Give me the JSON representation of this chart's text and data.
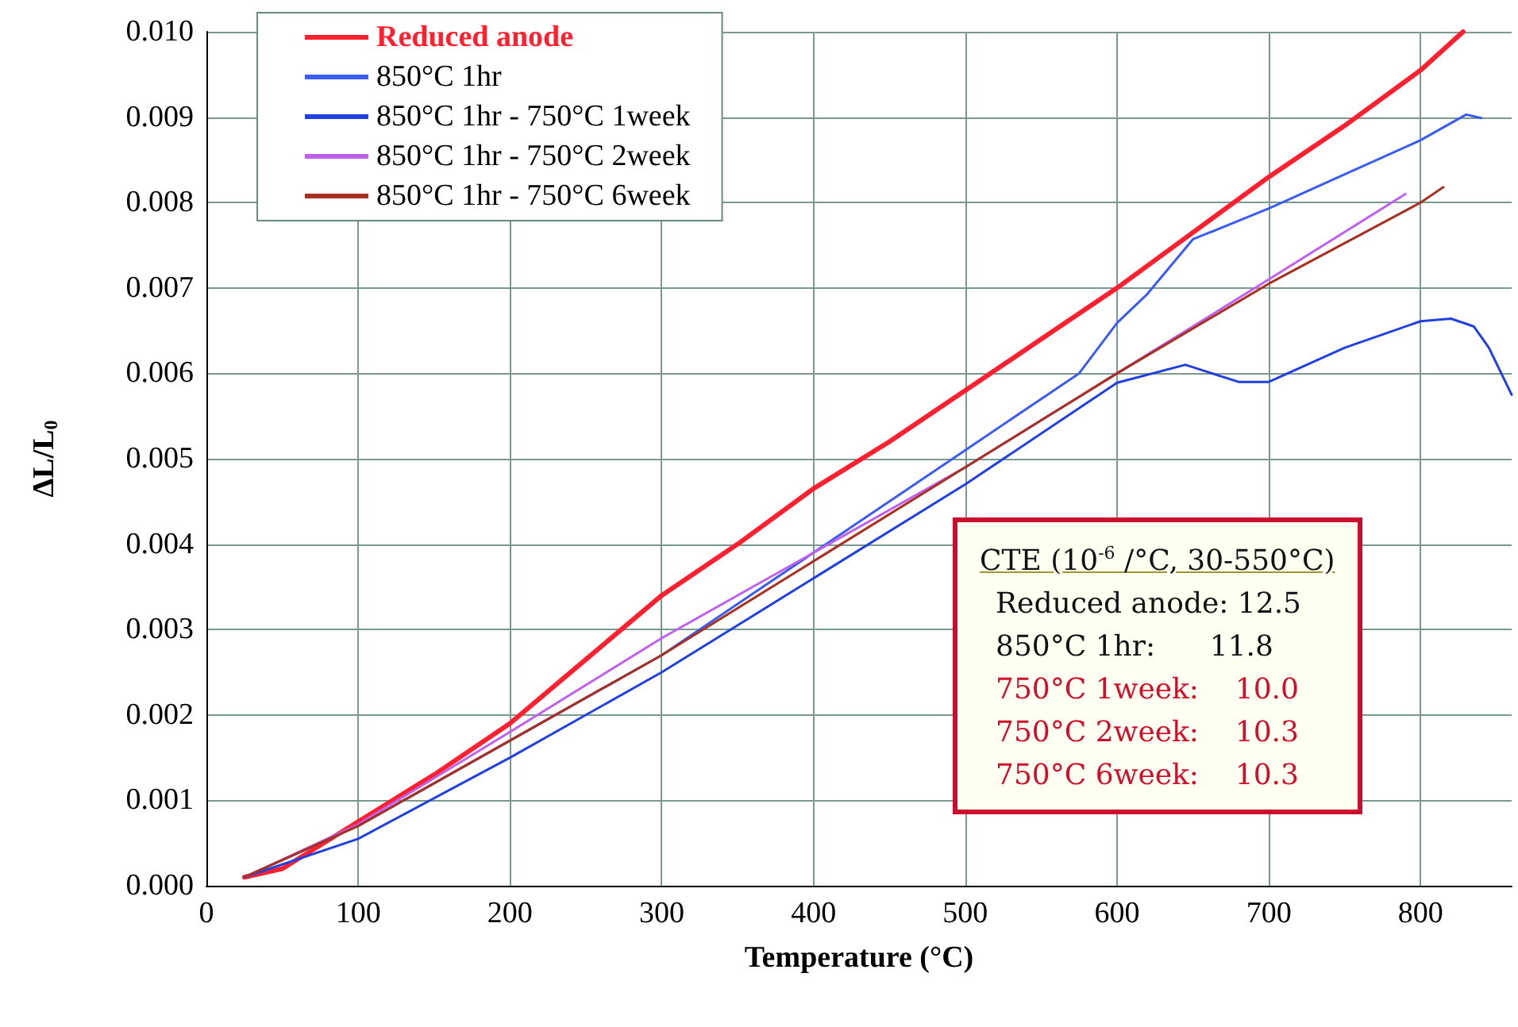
{
  "chart_data": {
    "type": "line",
    "xlabel": "Temperature (°C)",
    "ylabel": "ΔL/L$_{0}$",
    "xlim": [
      0,
      860
    ],
    "xticks": [
      0,
      100,
      200,
      300,
      400,
      500,
      600,
      700,
      800
    ],
    "ylim": [
      0,
      0.01
    ],
    "yticks": [
      {
        "value": 0,
        "label": "0.000"
      },
      {
        "value": 0.001,
        "label": "0.001"
      },
      {
        "value": 0.002,
        "label": "0.002"
      },
      {
        "value": 0.003,
        "label": "0.003"
      },
      {
        "value": 0.004,
        "label": "0.004"
      },
      {
        "value": 0.005,
        "label": "0.005"
      },
      {
        "value": 0.006,
        "label": "0.006"
      },
      {
        "value": 0.007,
        "label": "0.007"
      },
      {
        "value": 0.008,
        "label": "0.008"
      },
      {
        "value": 0.009,
        "label": "0.009"
      },
      {
        "value": 0.01,
        "label": "0.010"
      }
    ],
    "grid": true,
    "legend": "top left",
    "marker": "none",
    "line_style": "solid",
    "annotations": [
      "CTE (10$^{-6}$ /°C, 30-550°C)",
      "Reduced anode: 12.5",
      "850°C 1hr:      11.8",
      "750°C 1week:    10.0",
      "750°C 2week:    10.3",
      "750°C 6week:    10.3"
    ],
    "series": [
      {
        "name": "Reduced anode",
        "color": "#ff2030",
        "x": [
          25,
          50,
          100,
          150,
          200,
          250,
          300,
          350,
          400,
          450,
          500,
          550,
          600,
          650,
          700,
          750,
          800,
          828
        ],
        "values": [
          0.0001,
          0.0002,
          0.00075,
          0.0013,
          0.0019,
          0.00265,
          0.0034,
          0.004,
          0.00465,
          0.0052,
          0.0058,
          0.0064,
          0.007,
          0.00765,
          0.0083,
          0.0089,
          0.00955,
          0.01
        ]
      },
      {
        "name": "850°C 1hr",
        "color": "#3a5cf0",
        "x": [
          25,
          100,
          200,
          300,
          400,
          500,
          550,
          575,
          600,
          620,
          650,
          700,
          750,
          800,
          830,
          840
        ],
        "values": [
          0.0001,
          0.0007,
          0.0017,
          0.0027,
          0.0039,
          0.0051,
          0.0057,
          0.006,
          0.00659,
          0.00693,
          0.00757,
          0.00793,
          0.00833,
          0.00873,
          0.00903,
          0.00899
        ]
      },
      {
        "name": "850°C 1hr - 750°C 1week",
        "color": "#2040e0",
        "x": [
          25,
          100,
          200,
          300,
          400,
          500,
          600,
          645,
          680,
          700,
          750,
          800,
          820,
          835,
          845,
          860
        ],
        "values": [
          0.0001,
          0.00055,
          0.0015,
          0.0025,
          0.0036,
          0.0047,
          0.00589,
          0.0061,
          0.0059,
          0.0059,
          0.0063,
          0.00661,
          0.00664,
          0.00655,
          0.0063,
          0.00575
        ]
      },
      {
        "name": "850°C 1hr - 750°C 2week",
        "color": "#c060f0",
        "x": [
          25,
          100,
          200,
          300,
          400,
          500,
          600,
          700,
          790
        ],
        "values": [
          0.0001,
          0.00072,
          0.0018,
          0.0029,
          0.0039,
          0.0049,
          0.006,
          0.0071,
          0.0081
        ]
      },
      {
        "name": "850°C 1hr - 750°C 6week",
        "color": "#a83020",
        "x": [
          25,
          100,
          200,
          300,
          400,
          500,
          550,
          600,
          700,
          800,
          815
        ],
        "values": [
          0.0001,
          0.0007,
          0.0017,
          0.0027,
          0.0038,
          0.0049,
          0.00545,
          0.006,
          0.00705,
          0.008,
          0.00818
        ]
      }
    ]
  }
}
